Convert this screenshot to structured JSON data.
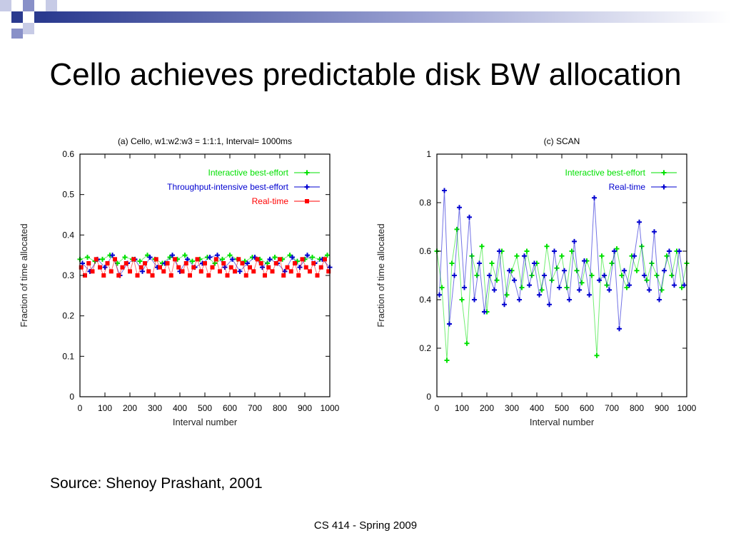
{
  "slide": {
    "title": "Cello achieves predictable disk BW allocation",
    "source": "Source: Shenoy Prashant, 2001",
    "footer": "CS 414 - Spring 2009",
    "deco_colors": [
      "#2a3a8f",
      "#8890c8",
      "#c7cbe6"
    ]
  },
  "chart_data": [
    {
      "type": "scatter",
      "title": "(a) Cello, w1:w2:w3 = 1:1:1, Interval= 1000ms",
      "xlabel": "Interval number",
      "ylabel": "Fraction of time allocated",
      "xlim": [
        0,
        1000
      ],
      "ylim": [
        0,
        0.6
      ],
      "xticks": [
        0,
        100,
        200,
        300,
        400,
        500,
        600,
        700,
        800,
        900,
        1000
      ],
      "yticks": [
        0,
        0.1,
        0.2,
        0.3,
        0.4,
        0.5,
        0.6
      ],
      "ytick_labels": [
        "0",
        "0.1",
        "0.2",
        "0.3",
        "0.4",
        "0.5",
        "0.6"
      ],
      "grid": false,
      "legend_position": "top-right",
      "series": [
        {
          "name": "Interactive best-effort",
          "color": "#00e000",
          "marker": "plus",
          "connected": true,
          "x": [
            0,
            30,
            60,
            90,
            120,
            150,
            180,
            210,
            240,
            270,
            300,
            330,
            360,
            390,
            420,
            450,
            480,
            510,
            540,
            570,
            600,
            630,
            660,
            690,
            720,
            750,
            780,
            810,
            840,
            870,
            900,
            930,
            960,
            990
          ],
          "y": [
            0.34,
            0.345,
            0.335,
            0.34,
            0.35,
            0.33,
            0.345,
            0.34,
            0.335,
            0.35,
            0.34,
            0.33,
            0.345,
            0.34,
            0.35,
            0.335,
            0.34,
            0.345,
            0.33,
            0.34,
            0.35,
            0.34,
            0.335,
            0.345,
            0.34,
            0.33,
            0.345,
            0.34,
            0.35,
            0.335,
            0.34,
            0.345,
            0.34,
            0.35
          ]
        },
        {
          "name": "Throughput-intensive best-effort",
          "color": "#0000d0",
          "marker": "plus",
          "connected": true,
          "x": [
            10,
            40,
            70,
            100,
            130,
            160,
            190,
            220,
            250,
            280,
            310,
            340,
            370,
            400,
            430,
            460,
            490,
            520,
            550,
            580,
            610,
            640,
            670,
            700,
            730,
            760,
            790,
            820,
            850,
            880,
            910,
            940,
            970,
            1000
          ],
          "y": [
            0.33,
            0.31,
            0.34,
            0.32,
            0.35,
            0.3,
            0.33,
            0.34,
            0.31,
            0.345,
            0.32,
            0.33,
            0.35,
            0.31,
            0.34,
            0.32,
            0.33,
            0.345,
            0.35,
            0.32,
            0.34,
            0.31,
            0.33,
            0.345,
            0.32,
            0.34,
            0.33,
            0.31,
            0.345,
            0.32,
            0.35,
            0.33,
            0.34,
            0.32
          ]
        },
        {
          "name": "Real-time",
          "color": "#ff0000",
          "marker": "square",
          "connected": true,
          "x": [
            5,
            20,
            35,
            50,
            65,
            80,
            95,
            110,
            125,
            140,
            155,
            170,
            185,
            200,
            215,
            230,
            245,
            260,
            275,
            290,
            305,
            320,
            335,
            350,
            365,
            380,
            395,
            410,
            425,
            440,
            455,
            470,
            485,
            500,
            515,
            530,
            545,
            560,
            575,
            590,
            605,
            620,
            635,
            650,
            665,
            680,
            695,
            710,
            725,
            740,
            755,
            770,
            785,
            800,
            815,
            830,
            845,
            860,
            875,
            890,
            905,
            920,
            935,
            950,
            965,
            980,
            995
          ],
          "y": [
            0.32,
            0.3,
            0.33,
            0.31,
            0.34,
            0.32,
            0.3,
            0.33,
            0.31,
            0.34,
            0.3,
            0.32,
            0.33,
            0.31,
            0.34,
            0.3,
            0.32,
            0.33,
            0.31,
            0.3,
            0.34,
            0.32,
            0.31,
            0.33,
            0.3,
            0.34,
            0.32,
            0.31,
            0.33,
            0.3,
            0.32,
            0.34,
            0.31,
            0.33,
            0.3,
            0.32,
            0.34,
            0.31,
            0.33,
            0.3,
            0.32,
            0.31,
            0.34,
            0.33,
            0.3,
            0.32,
            0.31,
            0.34,
            0.33,
            0.3,
            0.32,
            0.31,
            0.33,
            0.34,
            0.3,
            0.32,
            0.31,
            0.33,
            0.3,
            0.34,
            0.32,
            0.31,
            0.33,
            0.3,
            0.32,
            0.34,
            0.31
          ]
        }
      ]
    },
    {
      "type": "scatter",
      "title": "(c) SCAN",
      "xlabel": "Interval number",
      "ylabel": "Fraction of time allocated",
      "xlim": [
        0,
        1000
      ],
      "ylim": [
        0,
        1
      ],
      "xticks": [
        0,
        100,
        200,
        300,
        400,
        500,
        600,
        700,
        800,
        900,
        1000
      ],
      "yticks": [
        0,
        0.2,
        0.4,
        0.6,
        0.8,
        1
      ],
      "ytick_labels": [
        "0",
        "0.2",
        "0.4",
        "0.6",
        "0.8",
        "1"
      ],
      "grid": false,
      "legend_position": "top-right",
      "series": [
        {
          "name": "Interactive best-effort",
          "color": "#00e000",
          "marker": "plus",
          "connected": true,
          "x": [
            0,
            20,
            40,
            60,
            80,
            100,
            120,
            140,
            160,
            180,
            200,
            220,
            240,
            260,
            280,
            300,
            320,
            340,
            360,
            380,
            400,
            420,
            440,
            460,
            480,
            500,
            520,
            540,
            560,
            580,
            600,
            620,
            640,
            660,
            680,
            700,
            720,
            740,
            760,
            780,
            800,
            820,
            840,
            860,
            880,
            900,
            920,
            940,
            960,
            980,
            1000
          ],
          "y": [
            0.6,
            0.45,
            0.15,
            0.55,
            0.69,
            0.4,
            0.22,
            0.58,
            0.5,
            0.62,
            0.35,
            0.55,
            0.48,
            0.6,
            0.42,
            0.52,
            0.58,
            0.45,
            0.6,
            0.5,
            0.55,
            0.44,
            0.62,
            0.48,
            0.53,
            0.58,
            0.45,
            0.6,
            0.52,
            0.47,
            0.56,
            0.5,
            0.17,
            0.58,
            0.46,
            0.55,
            0.61,
            0.5,
            0.45,
            0.58,
            0.52,
            0.62,
            0.48,
            0.55,
            0.5,
            0.44,
            0.58,
            0.5,
            0.6,
            0.45,
            0.55
          ]
        },
        {
          "name": "Real-time",
          "color": "#0000d0",
          "marker": "plus",
          "connected": true,
          "x": [
            10,
            30,
            50,
            70,
            90,
            110,
            130,
            150,
            170,
            190,
            210,
            230,
            250,
            270,
            290,
            310,
            330,
            350,
            370,
            390,
            410,
            430,
            450,
            470,
            490,
            510,
            530,
            550,
            570,
            590,
            610,
            630,
            650,
            670,
            690,
            710,
            730,
            750,
            770,
            790,
            810,
            830,
            850,
            870,
            890,
            910,
            930,
            950,
            970,
            990
          ],
          "y": [
            0.42,
            0.85,
            0.3,
            0.5,
            0.78,
            0.45,
            0.74,
            0.4,
            0.55,
            0.35,
            0.5,
            0.44,
            0.6,
            0.38,
            0.52,
            0.48,
            0.4,
            0.58,
            0.46,
            0.55,
            0.42,
            0.5,
            0.38,
            0.6,
            0.45,
            0.52,
            0.4,
            0.64,
            0.44,
            0.56,
            0.42,
            0.82,
            0.48,
            0.5,
            0.44,
            0.6,
            0.28,
            0.52,
            0.46,
            0.58,
            0.72,
            0.5,
            0.44,
            0.68,
            0.4,
            0.52,
            0.6,
            0.46,
            0.6,
            0.46
          ]
        }
      ]
    }
  ]
}
